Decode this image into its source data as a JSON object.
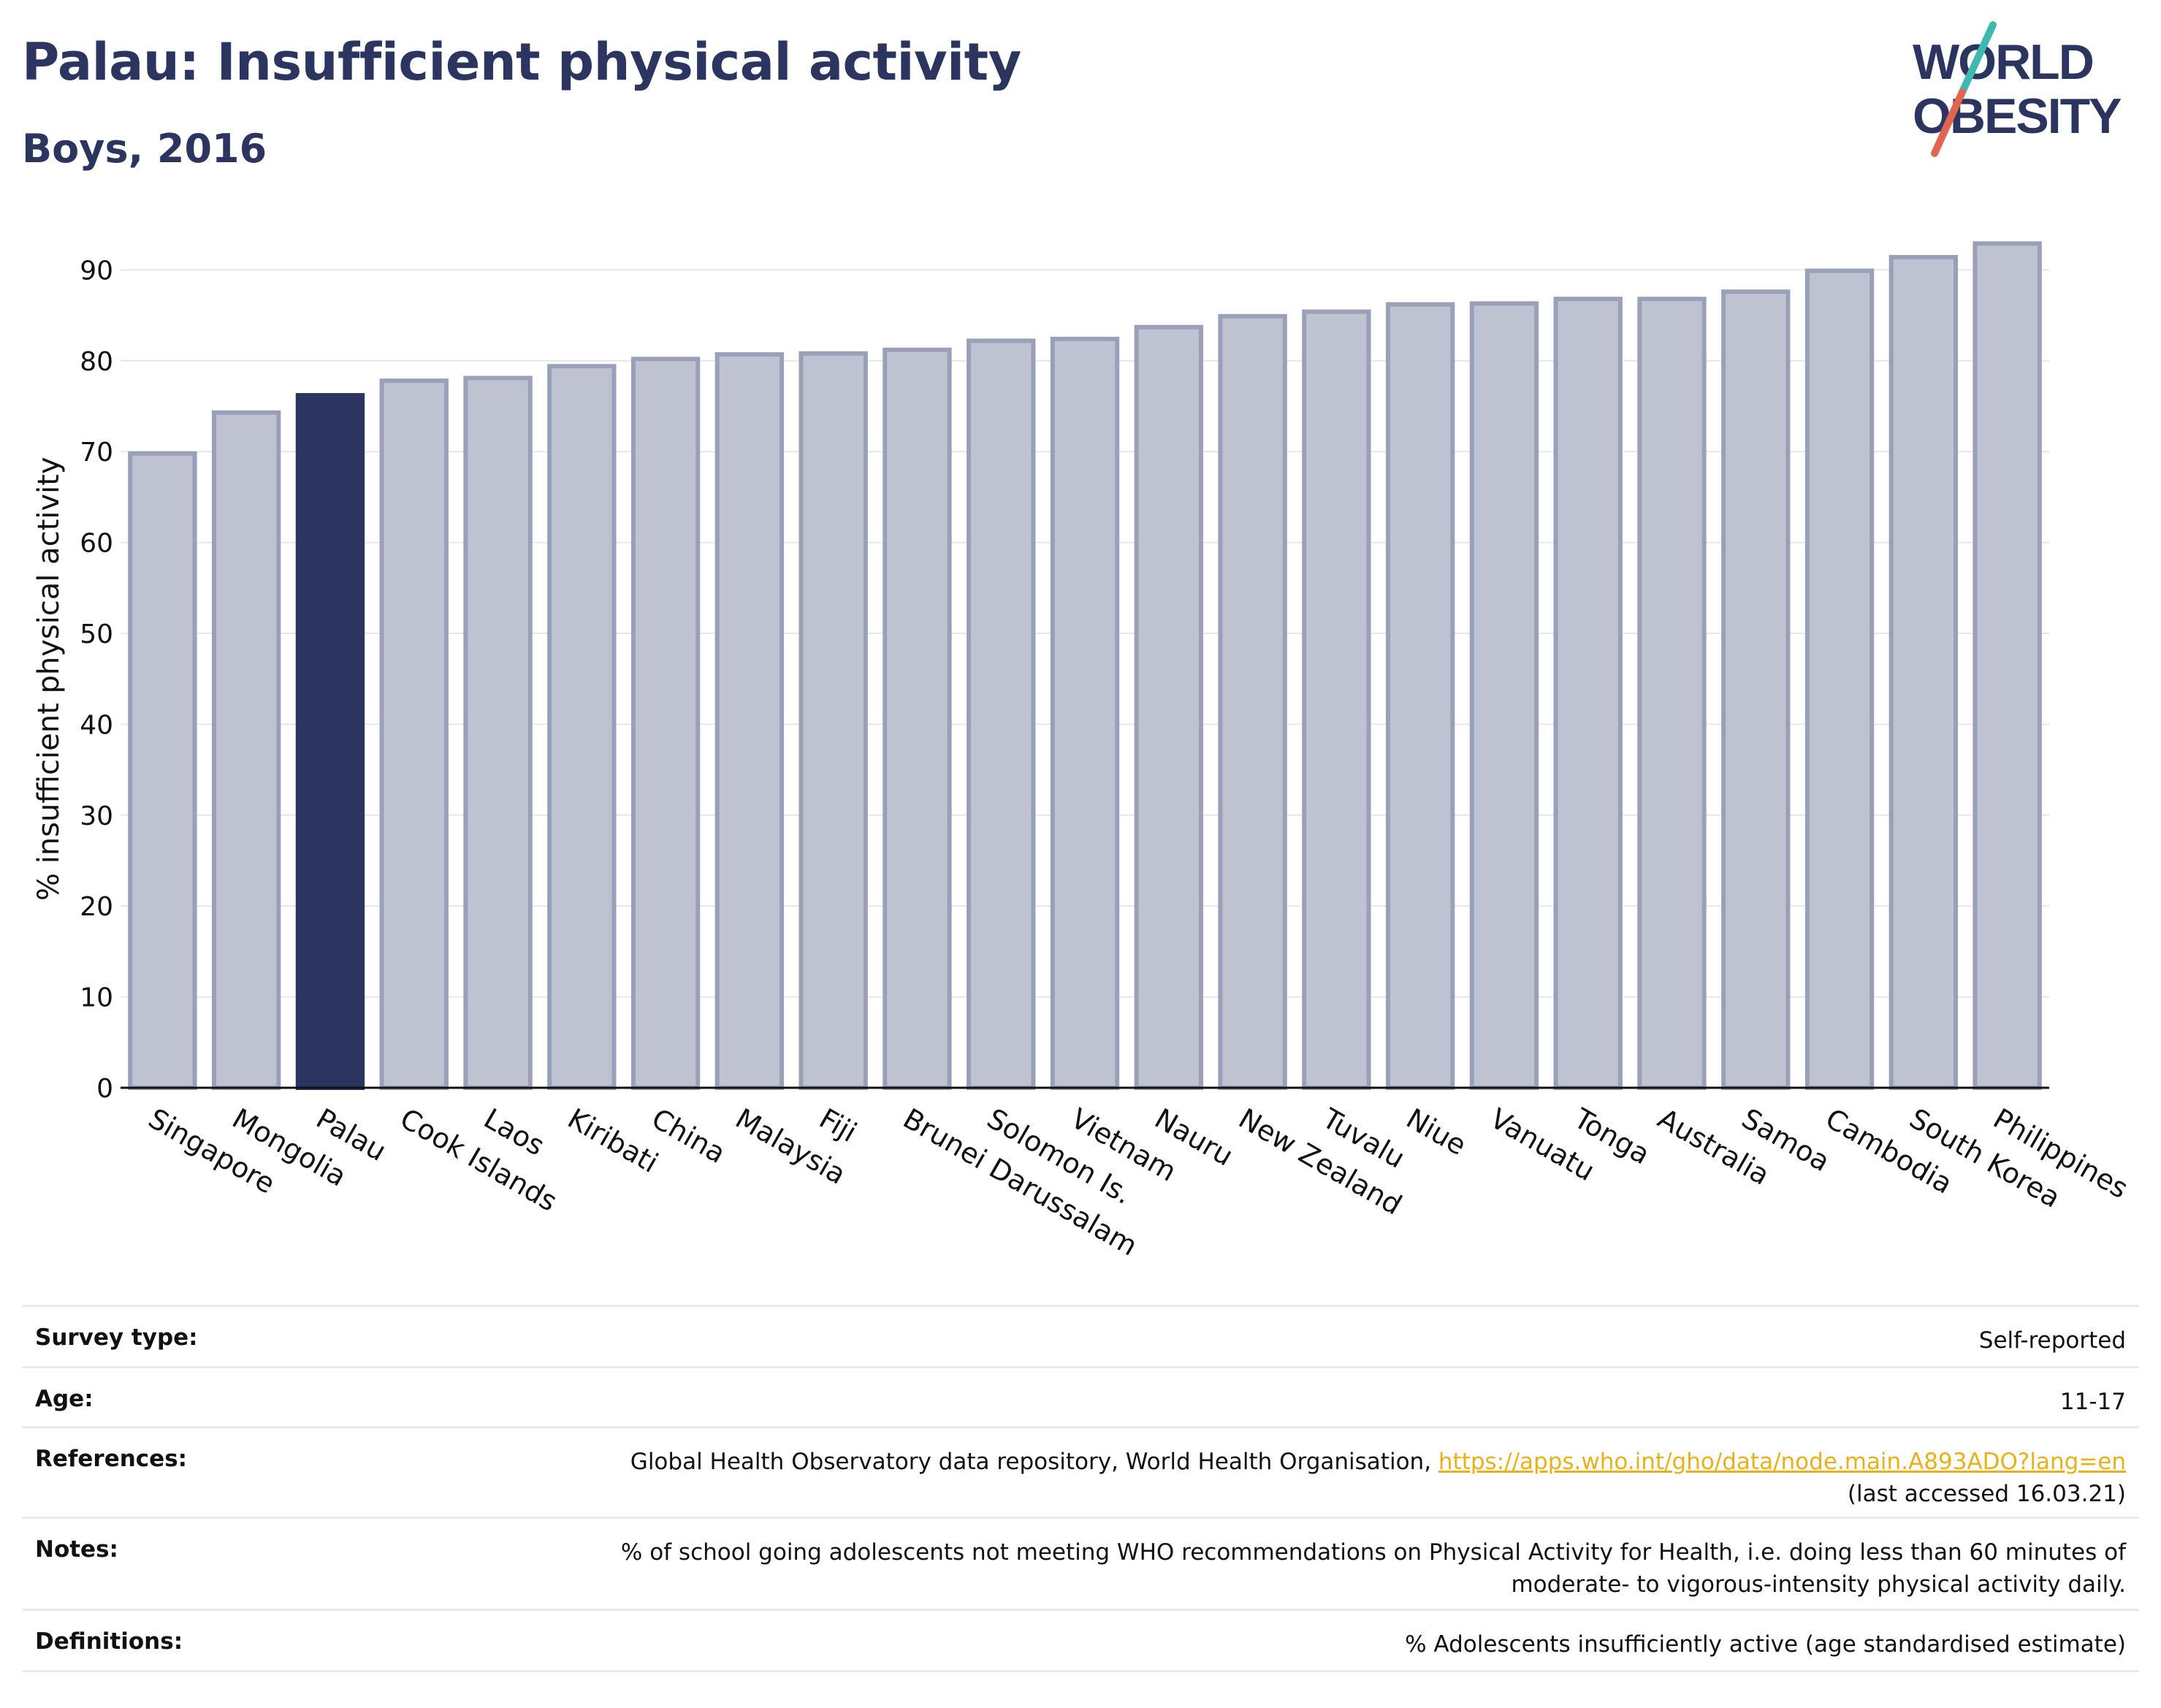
{
  "title": "Palau: Insufficient physical activity",
  "subtitle": "Boys, 2016",
  "logo": {
    "line1": "WORLD",
    "line2": "OBESITY",
    "text_color": "#2b3560",
    "slash_colors": [
      "#3fb8b2",
      "#e0664f"
    ]
  },
  "colors": {
    "highlight": "#2b3560",
    "bar_fill": "#bfc3d1",
    "bar_stroke": "#9ba0b9",
    "grid": "#e4e7ee",
    "link": "#e8b11c"
  },
  "chart_data": {
    "type": "bar",
    "ylabel": "% insufficient physical activity",
    "xlabel": "",
    "ylim": [
      0,
      95
    ],
    "yticks": [
      0,
      10,
      20,
      30,
      40,
      50,
      60,
      70,
      80,
      90
    ],
    "grid": true,
    "highlight": "Palau",
    "categories": [
      "Singapore",
      "Mongolia",
      "Palau",
      "Cook Islands",
      "Laos",
      "Kiribati",
      "China",
      "Malaysia",
      "Fiji",
      "Brunei Darussalam",
      "Solomon Is.",
      "Vietnam",
      "Nauru",
      "New Zealand",
      "Tuvalu",
      "Niue",
      "Vanuatu",
      "Tonga",
      "Australia",
      "Samoa",
      "Cambodia",
      "South Korea",
      "Philippines"
    ],
    "values": [
      69.8,
      74.3,
      76.2,
      77.8,
      78.1,
      79.4,
      80.2,
      80.7,
      80.8,
      81.2,
      82.2,
      82.4,
      83.7,
      84.9,
      85.4,
      86.2,
      86.3,
      86.8,
      86.8,
      87.6,
      89.9,
      91.4,
      92.9
    ]
  },
  "info": [
    {
      "label": "Survey type:",
      "value": "Self-reported"
    },
    {
      "label": "Age:",
      "value": "11-17"
    },
    {
      "label": "References:",
      "value": "Global Health Observatory data repository, World Health Organisation,",
      "link": "https://apps.who.int/gho/data/node.main.A893ADO?lang=en",
      "value2": "(last accessed 16.03.21)"
    },
    {
      "label": "Notes:",
      "value": "% of school going adolescents not meeting WHO recommendations on Physical Activity for Health, i.e. doing less than 60 minutes of",
      "value2": "moderate- to vigorous-intensity physical activity daily."
    },
    {
      "label": "Definitions:",
      "value": "% Adolescents insufficiently active (age standardised estimate)"
    }
  ]
}
